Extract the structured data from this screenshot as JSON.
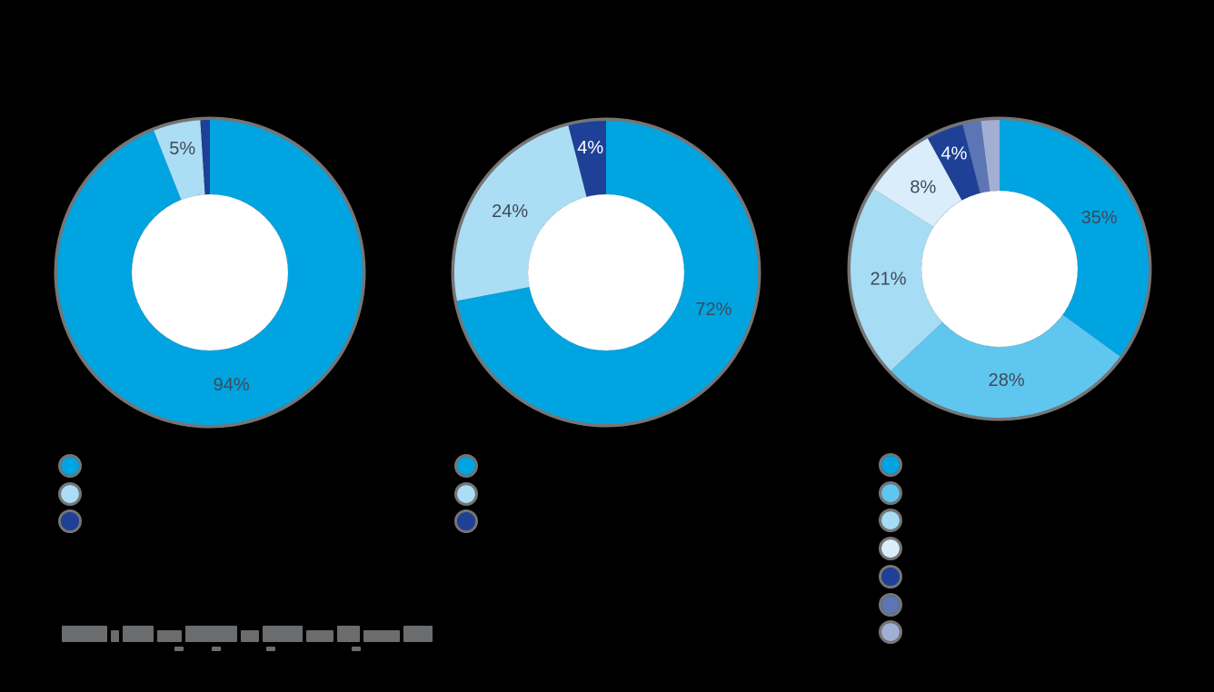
{
  "background_color": "#000000",
  "halo_color": "#8A8A8A",
  "label_dark_color": "#3E4A57",
  "label_light_color": "#FFFFFF",
  "chart_data": [
    {
      "type": "pie",
      "subtype": "donut",
      "title": "",
      "slices": [
        {
          "value": 94,
          "label": "94%",
          "color": "#00A4E1",
          "label_color": "#3E4A57"
        },
        {
          "value": 5,
          "label": "5%",
          "color": "#ABDEF5",
          "label_color": "#3E4A57"
        },
        {
          "value": 1,
          "label": "",
          "color": "#1E4097",
          "label_color": ""
        }
      ],
      "legend": {
        "labels_visible": false,
        "colors": [
          "#00A4E1",
          "#ABDEF5",
          "#1E4097"
        ]
      }
    },
    {
      "type": "pie",
      "subtype": "donut",
      "title": "",
      "slices": [
        {
          "value": 72,
          "label": "72%",
          "color": "#00A4E1",
          "label_color": "#3E4A57"
        },
        {
          "value": 24,
          "label": "24%",
          "color": "#ABDEF5",
          "label_color": "#3E4A57"
        },
        {
          "value": 4,
          "label": "4%",
          "color": "#1E4097",
          "label_color": "#FFFFFF"
        }
      ],
      "legend": {
        "labels_visible": false,
        "colors": [
          "#00A4E1",
          "#ABDEF5",
          "#1E4097"
        ]
      }
    },
    {
      "type": "pie",
      "subtype": "donut",
      "title": "",
      "slices": [
        {
          "value": 35,
          "label": "35%",
          "color": "#00A4E1",
          "label_color": "#3E4A57"
        },
        {
          "value": 28,
          "label": "28%",
          "color": "#5FC6F0",
          "label_color": "#3E4A57"
        },
        {
          "value": 21,
          "label": "21%",
          "color": "#A6DCF4",
          "label_color": "#3E4A57"
        },
        {
          "value": 8,
          "label": "8%",
          "color": "#D9EDFA",
          "label_color": "#3E4A57"
        },
        {
          "value": 4,
          "label": "4%",
          "color": "#1E4097",
          "label_color": "#FFFFFF"
        },
        {
          "value": 2,
          "label": "",
          "color": "#5C75B5",
          "label_color": ""
        },
        {
          "value": 2,
          "label": "",
          "color": "#A2AFD4",
          "label_color": ""
        }
      ],
      "legend": {
        "labels_visible": false,
        "colors": [
          "#00A4E1",
          "#5FC6F0",
          "#A6DCF4",
          "#D9EDFA",
          "#1E4097",
          "#5C75B5",
          "#A2AFD4"
        ]
      }
    }
  ],
  "footnote": {
    "legible": false,
    "bar_color": "#6A6C6E"
  }
}
